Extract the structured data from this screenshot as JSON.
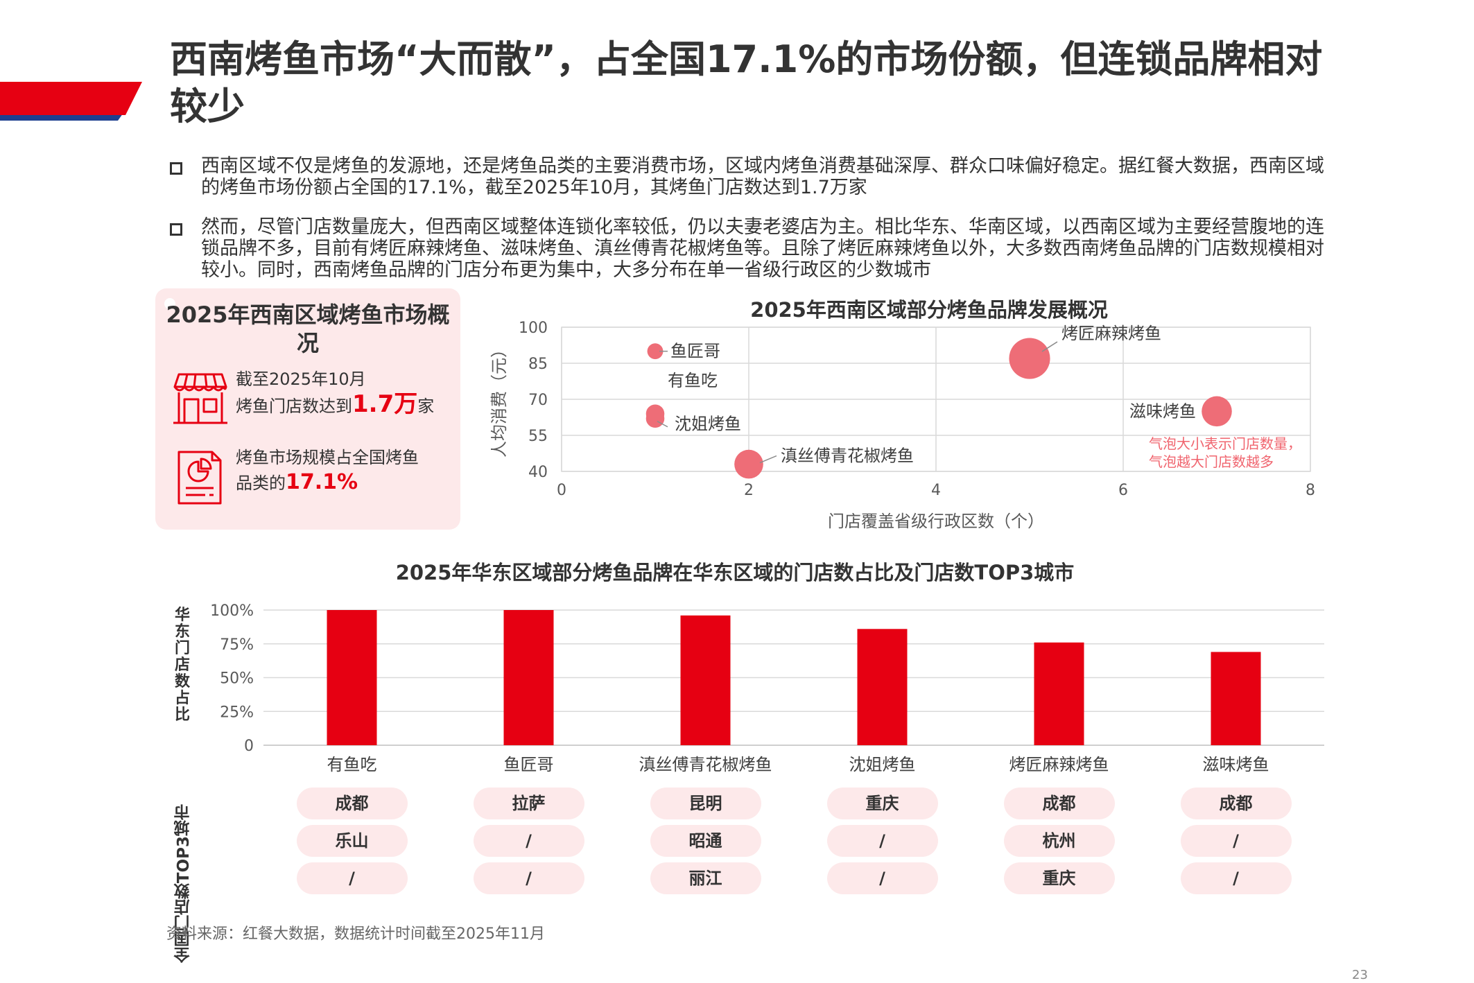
{
  "title": "西南烤鱼市场“大而散”，占全国17.1%的市场份额，但连锁品牌相对较少",
  "bullets": [
    "西南区域不仅是烤鱼的发源地，还是烤鱼品类的主要消费市场，区域内烤鱼消费基础深厚、群众口味偏好稳定。据红餐大数据，西南区域的烤鱼市场份额占全国的17.1%，截至2025年10月，其烤鱼门店数达到1.7万家",
    "然而，尽管门店数量庞大，但西南区域整体连锁化率较低，仍以夫妻老婆店为主。相比华东、华南区域，以西南区域为主要经营腹地的连锁品牌不多，目前有烤匠麻辣烤鱼、滋味烤鱼、滇丝傅青花椒烤鱼等。且除了烤匠麻辣烤鱼以外，大多数西南烤鱼品牌的门店数规模相对较小。同时，西南烤鱼品牌的门店分布更为集中，大多分布在单一省级行政区的少数城市"
  ],
  "overview": {
    "title": "2025年西南区域烤鱼市场概况",
    "store_line1": "截至2025年10月",
    "store_prefix": "烤鱼门店数达到",
    "store_value": "1.7万",
    "store_suffix": "家",
    "share_line1": "烤鱼市场规模占全国烤鱼",
    "share_prefix": "品类的",
    "share_value": "17.1%",
    "store_icon": "storefront-icon",
    "share_icon": "report-chart-icon"
  },
  "colors": {
    "brand_red": "#e60012",
    "bubble": "#ee6d77",
    "note": "#f0646e",
    "pill_bg": "#fde9ea",
    "accent_blue": "#1d3f8f"
  },
  "chart_data": [
    {
      "type": "scatter",
      "title": "2025年西南区域部分烤鱼品牌发展概况",
      "xlabel": "门店覆盖省级行政区数（个）",
      "ylabel": "人均消费（元）",
      "xlim": [
        0,
        8
      ],
      "ylim": [
        40,
        100
      ],
      "x_ticks": [
        "0",
        "2",
        "4",
        "6",
        "8"
      ],
      "y_ticks": [
        "40",
        "55",
        "70",
        "85",
        "100"
      ],
      "grid": true,
      "note": "气泡大小表示门店数量，气泡越大门店数越多",
      "points": [
        {
          "label": "鱼匠哥",
          "x": 1,
          "y": 90,
          "size": 1
        },
        {
          "label": "有鱼吃",
          "x": 1,
          "y": 64,
          "size": 1.5
        },
        {
          "label": "沈姐烤鱼",
          "x": 1,
          "y": 62,
          "size": 1.5
        },
        {
          "label": "烤匠麻辣烤鱼",
          "x": 5,
          "y": 87,
          "size": 10
        },
        {
          "label": "滋味烤鱼",
          "x": 7,
          "y": 65,
          "size": 5
        },
        {
          "label": "滇丝傅青花椒烤鱼",
          "x": 2,
          "y": 43,
          "size": 4.5
        }
      ]
    },
    {
      "type": "bar",
      "title": "2025年华东区域部分烤鱼品牌在华东区域的门店数占比及门店数TOP3城市",
      "ylabel": "华东门店数占比",
      "ylim": [
        0,
        100
      ],
      "y_ticks": [
        "0",
        "25%",
        "50%",
        "75%",
        "100%"
      ],
      "grid": true,
      "categories": [
        "有鱼吃",
        "鱼匠哥",
        "滇丝傅青花椒烤鱼",
        "沈姐烤鱼",
        "烤匠麻辣烤鱼",
        "滋味烤鱼"
      ],
      "values": [
        100,
        100,
        96,
        86,
        76,
        69
      ]
    }
  ],
  "top3": {
    "header": "全国门店数TOP3城市",
    "rows": [
      [
        "成都",
        "拉萨",
        "昆明",
        "重庆",
        "成都",
        "成都"
      ],
      [
        "乐山",
        "/",
        "昭通",
        "/",
        "杭州",
        "/"
      ],
      [
        "/",
        "/",
        "丽江",
        "/",
        "重庆",
        "/"
      ]
    ]
  },
  "source": "资料来源：红餐大数据，数据统计时间截至2025年11月",
  "page_number": "23"
}
